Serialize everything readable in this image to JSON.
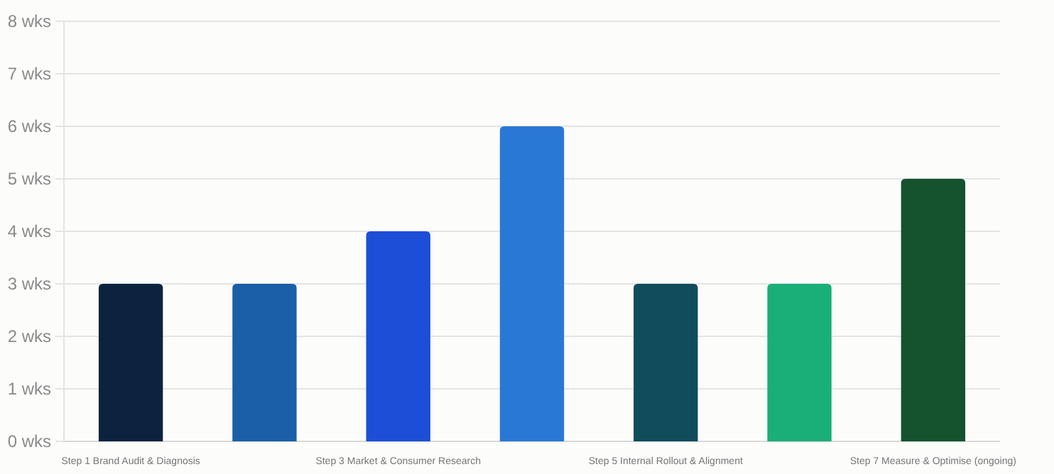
{
  "chart_data": {
    "type": "bar",
    "categories": [
      "Step 1 Brand Audit & Diagnosis",
      null,
      "Step 3 Market & Consumer Research",
      null,
      "Step 5 Internal Rollout & Alignment",
      null,
      "Step 7 Measure & Optimise (ongoing)"
    ],
    "values": [
      3,
      3,
      4,
      6,
      3,
      3,
      5
    ],
    "colors": [
      "#0c2340",
      "#1a5fa8",
      "#1d4ed8",
      "#2a78d6",
      "#0f4c5c",
      "#1aaf78",
      "#14532d"
    ],
    "ylim": [
      0,
      8
    ],
    "yticks": [
      {
        "value": 0,
        "label": "0 wks"
      },
      {
        "value": 1,
        "label": "1 wks"
      },
      {
        "value": 2,
        "label": "2 wks"
      },
      {
        "value": 3,
        "label": "3 wks"
      },
      {
        "value": 4,
        "label": "4 wks"
      },
      {
        "value": 5,
        "label": "5 wks"
      },
      {
        "value": 6,
        "label": "6 wks"
      },
      {
        "value": 7,
        "label": "7 wks"
      },
      {
        "value": 8,
        "label": "8 wks"
      }
    ],
    "grid": "y"
  }
}
